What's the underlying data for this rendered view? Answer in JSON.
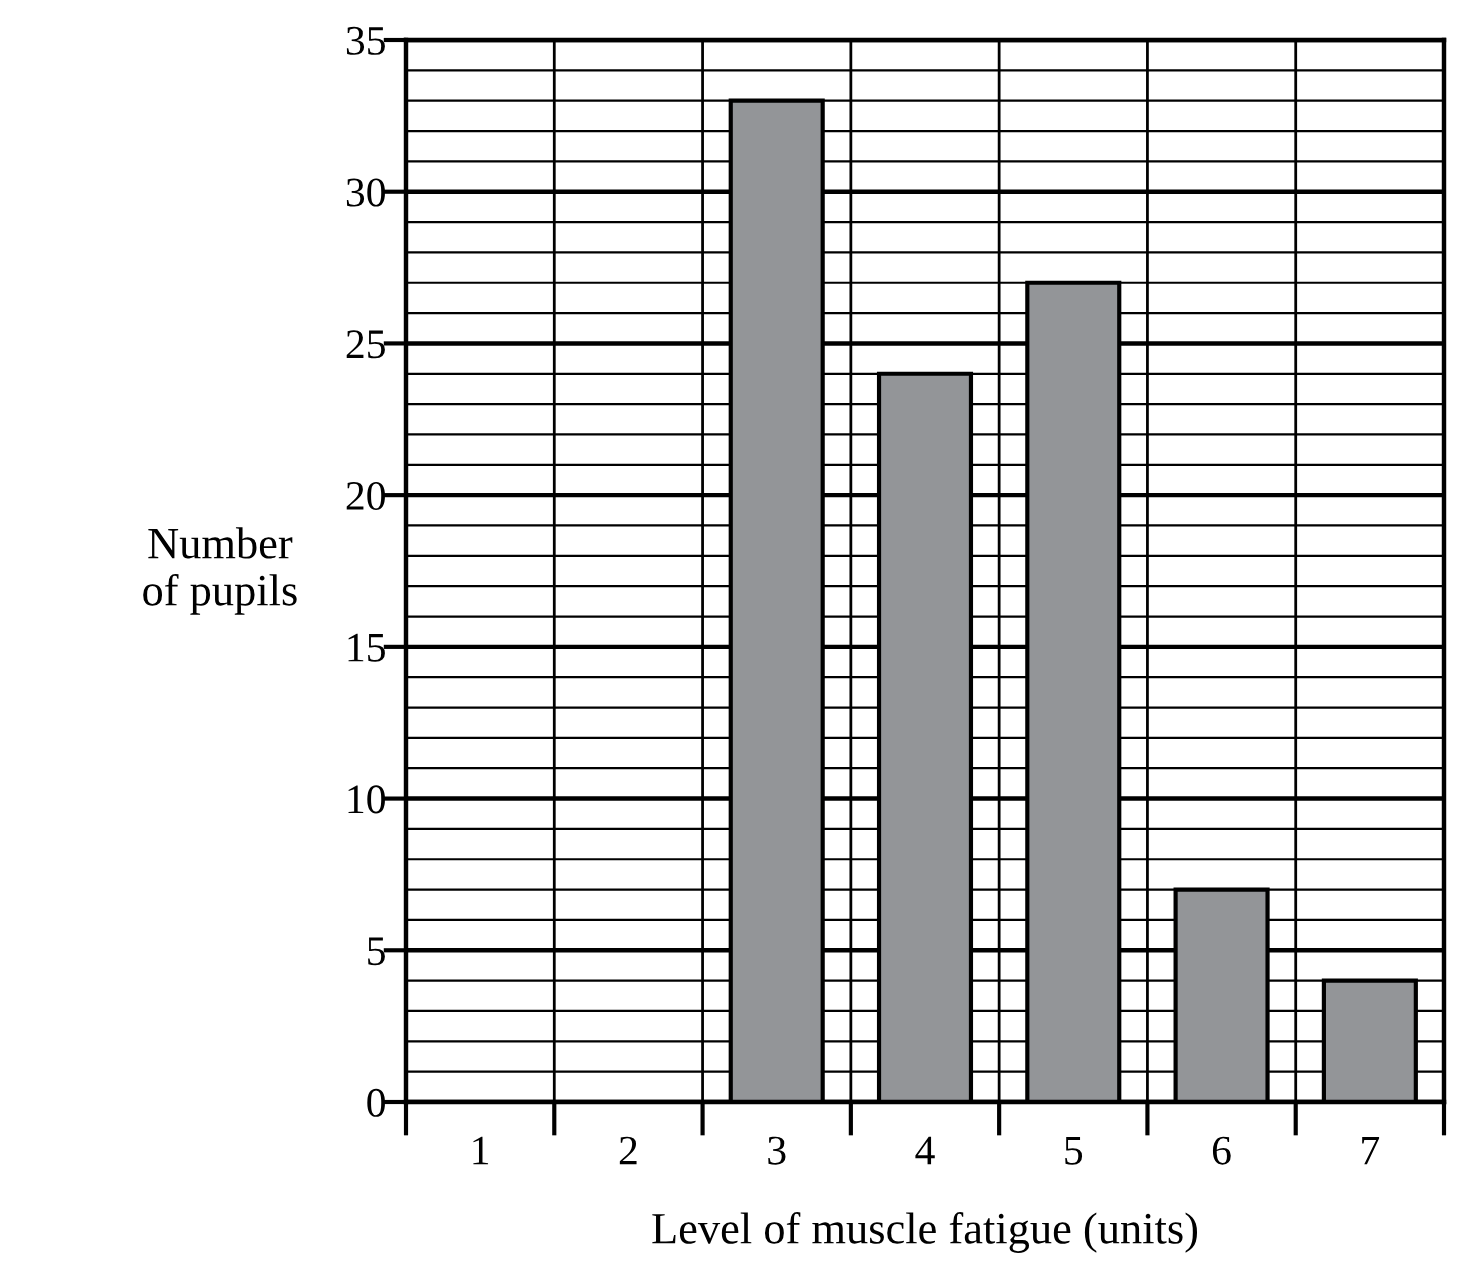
{
  "chart_data": {
    "type": "bar",
    "xlabel": "Level of muscle fatigue (units)",
    "ylabel": "Number\nof pupils",
    "categories": [
      "1",
      "2",
      "3",
      "4",
      "5",
      "6",
      "7"
    ],
    "values": [
      0,
      0,
      33,
      24,
      27,
      7,
      4
    ],
    "color": "#939598",
    "ylim": [
      0,
      35
    ],
    "yticks": [
      0,
      {
        "value": 1,
        "label": null
      },
      {
        "value": 2,
        "label": null
      },
      {
        "value": 3,
        "label": null
      },
      {
        "value": 4,
        "label": null
      },
      5,
      {
        "value": 6,
        "label": null
      },
      {
        "value": 7,
        "label": null
      },
      {
        "value": 8,
        "label": null
      },
      {
        "value": 9,
        "label": null
      },
      10,
      {
        "value": 11,
        "label": null
      },
      {
        "value": 12,
        "label": null
      },
      {
        "value": 13,
        "label": null
      },
      {
        "value": 14,
        "label": null
      },
      15,
      {
        "value": 16,
        "label": null
      },
      {
        "value": 17,
        "label": null
      },
      {
        "value": 18,
        "label": null
      },
      {
        "value": 19,
        "label": null
      },
      20,
      {
        "value": 21,
        "label": null
      },
      {
        "value": 22,
        "label": null
      },
      {
        "value": 23,
        "label": null
      },
      {
        "value": 24,
        "label": null
      },
      25,
      {
        "value": 26,
        "label": null
      },
      {
        "value": 27,
        "label": null
      },
      {
        "value": 28,
        "label": null
      },
      {
        "value": 29,
        "label": null
      },
      30,
      {
        "value": 31,
        "label": null
      },
      {
        "value": 32,
        "label": null
      },
      {
        "value": 33,
        "label": null
      },
      {
        "value": 34,
        "label": null
      },
      35
    ],
    "grid": true,
    "legend": false
  }
}
